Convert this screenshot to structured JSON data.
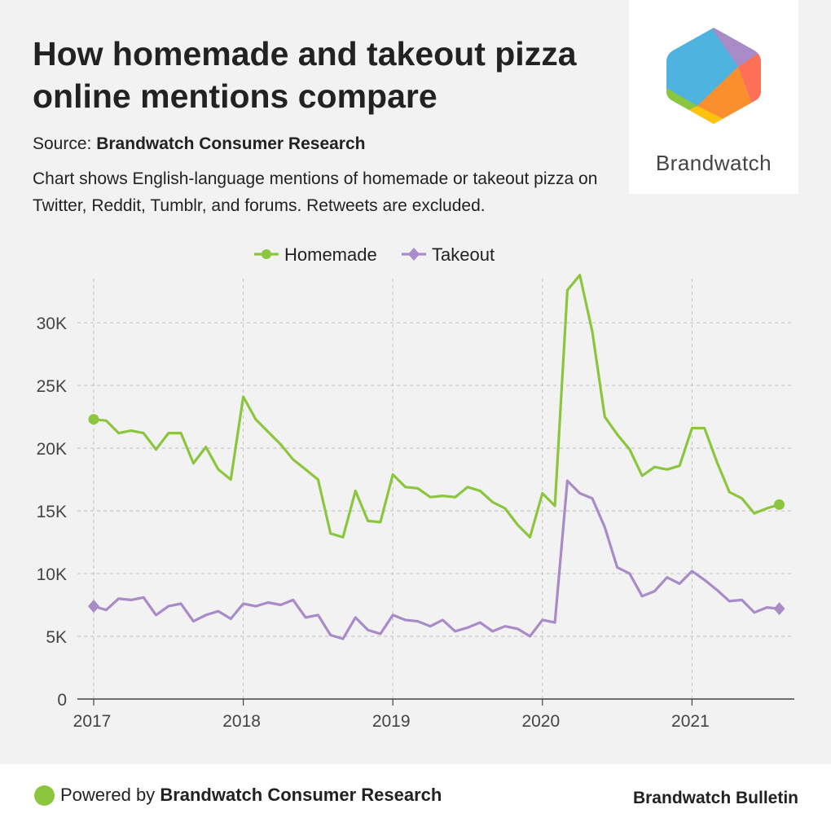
{
  "header": {
    "title": "How homemade and takeout pizza online mentions compare",
    "source_label": "Source:",
    "source_name": "Brandwatch Consumer Research",
    "description": "Chart shows English-language mentions of homemade or takeout pizza on Twitter, Reddit, Tumblr, and forums. Retweets are excluded."
  },
  "logo": {
    "text": "Brandwatch"
  },
  "footer": {
    "powered_label": "Powered by",
    "powered_name": "Brandwatch Consumer Research",
    "bulletin": "Brandwatch Bulletin"
  },
  "colors": {
    "homemade": "#8cc63f",
    "takeout": "#a88bc7",
    "grid": "#c8c8c8",
    "axis": "#444444"
  },
  "chart_data": {
    "type": "line",
    "title": "",
    "xlabel": "",
    "ylabel": "",
    "x_start": "2017-01",
    "x_step": "month",
    "x_ticks": [
      2017,
      2018,
      2019,
      2020,
      2021
    ],
    "y_ticks": [
      0,
      5000,
      10000,
      15000,
      20000,
      25000,
      30000
    ],
    "y_tick_labels": [
      "0",
      "5K",
      "10K",
      "15K",
      "20K",
      "25K",
      "30K"
    ],
    "ylim": [
      0,
      34500
    ],
    "legend_position": "top-center",
    "series": [
      {
        "name": "Homemade",
        "marker": "circle",
        "values": [
          22300,
          22200,
          21200,
          21400,
          21200,
          19900,
          21200,
          21200,
          18800,
          20100,
          18300,
          17500,
          24100,
          22300,
          21300,
          20300,
          19100,
          18300,
          17500,
          13200,
          12900,
          16600,
          14200,
          14100,
          17900,
          16900,
          16800,
          16100,
          16200,
          16100,
          16900,
          16600,
          15700,
          15200,
          13900,
          12900,
          16400,
          15400,
          32600,
          33800,
          29300,
          22500,
          21100,
          19900,
          17800,
          18500,
          18300,
          18600,
          21600,
          21600,
          18900,
          16500,
          16000,
          14800,
          15200,
          15500
        ]
      },
      {
        "name": "Takeout",
        "marker": "diamond",
        "values": [
          7400,
          7100,
          8000,
          7900,
          8100,
          6700,
          7400,
          7600,
          6200,
          6700,
          7000,
          6400,
          7600,
          7400,
          7700,
          7500,
          7900,
          6500,
          6700,
          5100,
          4800,
          6500,
          5500,
          5200,
          6700,
          6300,
          6200,
          5800,
          6300,
          5400,
          5700,
          6100,
          5400,
          5800,
          5600,
          5000,
          6300,
          6100,
          17400,
          16400,
          16000,
          13700,
          10500,
          10000,
          8200,
          8600,
          9700,
          9200,
          10200,
          9500,
          8700,
          7800,
          7900,
          6900,
          7300,
          7200
        ]
      }
    ]
  }
}
